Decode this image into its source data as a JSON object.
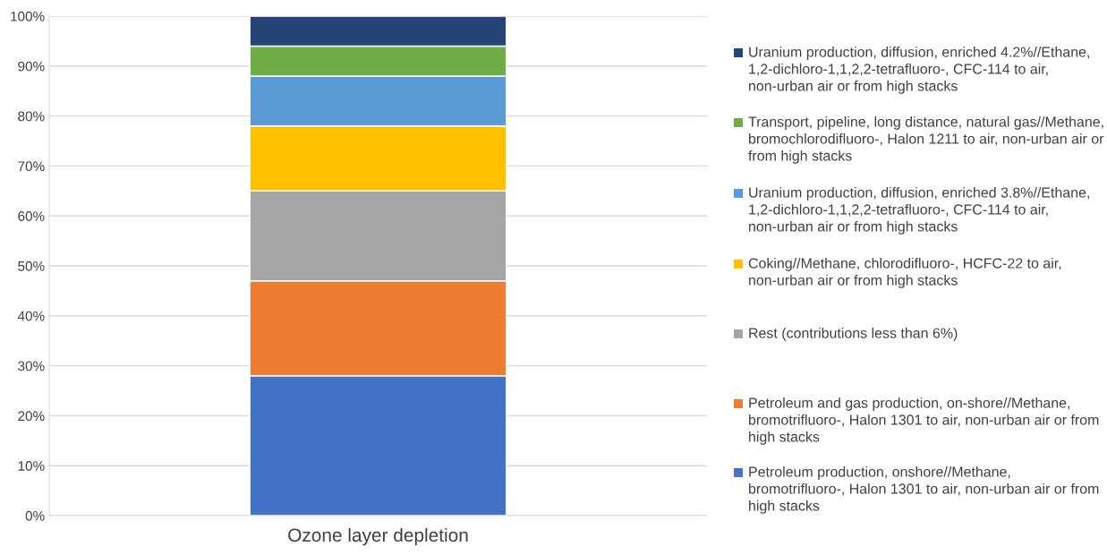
{
  "chart_data": {
    "type": "bar",
    "stacked": true,
    "categories": [
      "Ozone layer depletion"
    ],
    "series": [
      {
        "name": "Petroleum production, onshore//Methane, bromotrifluoro-, Halon 1301 to air, non-urban air or from high stacks",
        "color": "#4472c4",
        "values": [
          28
        ]
      },
      {
        "name": "Petroleum and gas production, on-shore//Methane, bromotrifluoro-, Halon 1301 to air, non-urban air or from high stacks",
        "color": "#ed7d31",
        "values": [
          19
        ]
      },
      {
        "name": "Rest (contributions less than 6%)",
        "color": "#a5a5a5",
        "values": [
          18
        ]
      },
      {
        "name": "Coking//Methane, chlorodifluoro-, HCFC-22 to air, non-urban air or from high stacks",
        "color": "#ffc000",
        "values": [
          13
        ]
      },
      {
        "name": "Uranium production, diffusion, enriched 3.8%//Ethane, 1,2-dichloro-1,1,2,2-tetrafluoro-, CFC-114 to air, non-urban air or from high stacks",
        "color": "#5b9bd5",
        "values": [
          10
        ]
      },
      {
        "name": "Transport, pipeline, long distance, natural gas//Methane, bromochlorodifluoro-, Halon 1211 to air, non-urban air or from high stacks",
        "color": "#70ad47",
        "values": [
          6
        ]
      },
      {
        "name": "Uranium production, diffusion, enriched 4.2%//Ethane, 1,2-dichloro-1,1,2,2-tetrafluoro-, CFC-114 to air, non-urban air or from high stacks",
        "color": "#264478",
        "values": [
          6
        ]
      }
    ],
    "ylim": [
      0,
      100
    ],
    "yticks": [
      {
        "value": 0,
        "label": "0%"
      },
      {
        "value": 10,
        "label": "10%"
      },
      {
        "value": 20,
        "label": "20%"
      },
      {
        "value": 30,
        "label": "30%"
      },
      {
        "value": 40,
        "label": "40%"
      },
      {
        "value": 50,
        "label": "50%"
      },
      {
        "value": 60,
        "label": "60%"
      },
      {
        "value": 70,
        "label": "70%"
      },
      {
        "value": 80,
        "label": "80%"
      },
      {
        "value": 90,
        "label": "90%"
      },
      {
        "value": 100,
        "label": "100%"
      }
    ],
    "grid": "y",
    "legend": "right"
  }
}
